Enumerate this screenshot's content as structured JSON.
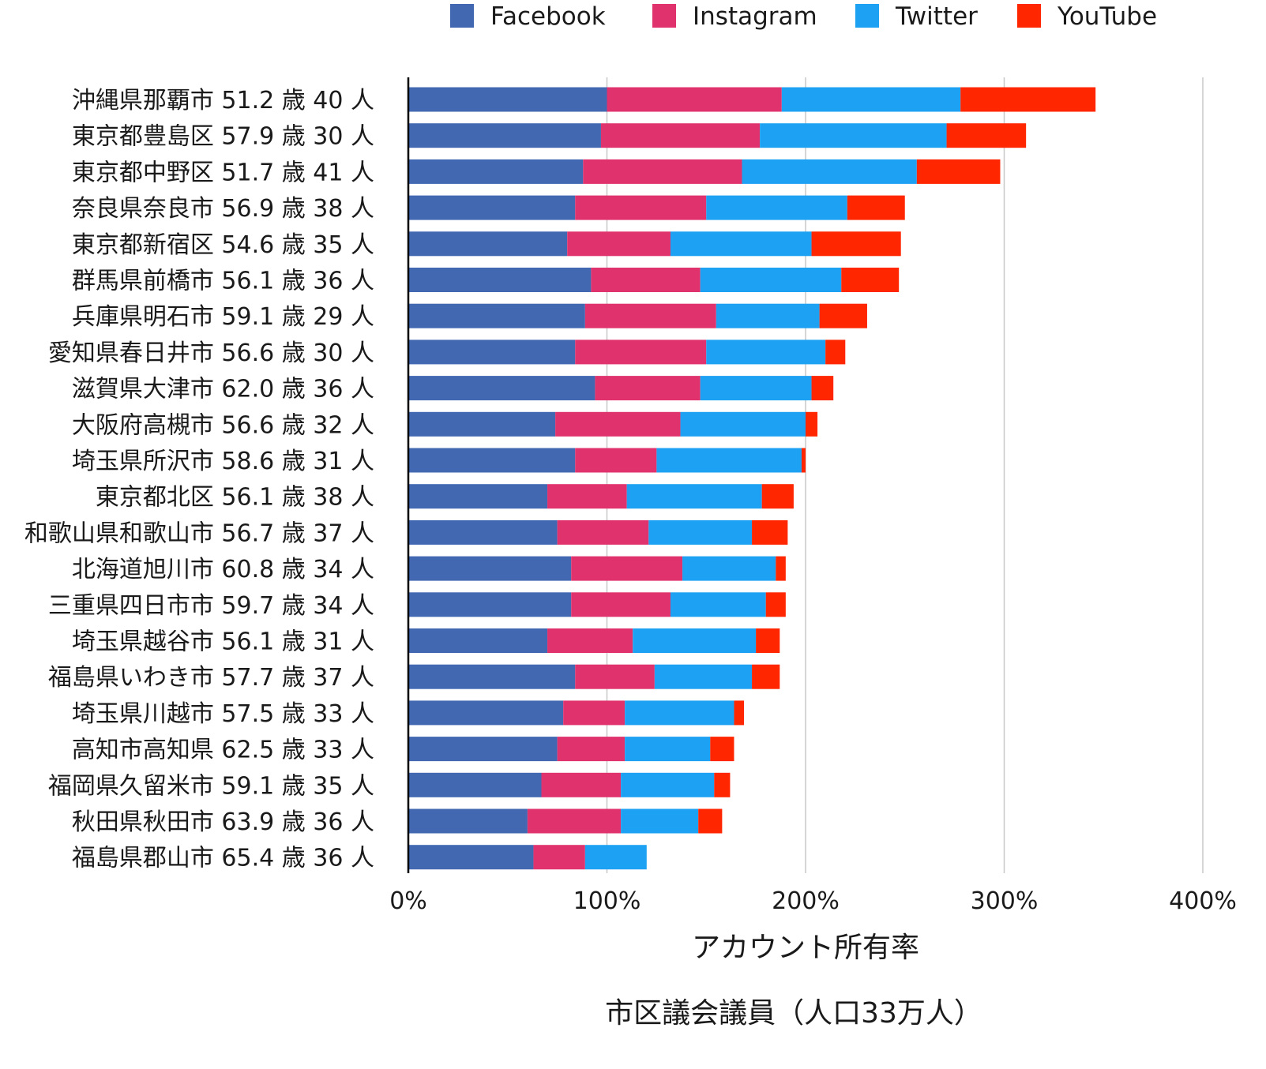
{
  "chart_data": {
    "type": "bar",
    "orientation": "horizontal",
    "stacked": true,
    "xlabel": "アカウント所有率",
    "title": "市区議会議員（人口33万人）",
    "xlim": [
      0,
      400
    ],
    "x_ticks": [
      "0%",
      "100%",
      "200%",
      "300%",
      "400%"
    ],
    "grid": true,
    "legend_position": "top",
    "categories": [
      "沖縄県那覇市 51.2 歳 40 人",
      "東京都豊島区 57.9 歳 30 人",
      "東京都中野区 51.7 歳 41 人",
      "奈良県奈良市 56.9 歳 38 人",
      "東京都新宿区 54.6 歳 35 人",
      "群馬県前橋市 56.1 歳 36 人",
      "兵庫県明石市 59.1 歳 29 人",
      "愛知県春日井市 56.6 歳 30 人",
      "滋賀県大津市 62.0 歳 36 人",
      "大阪府高槻市 56.6 歳 32 人",
      "埼玉県所沢市 58.6 歳 31 人",
      "東京都北区 56.1 歳 38 人",
      "和歌山県和歌山市 56.7 歳 37 人",
      "北海道旭川市 60.8 歳 34 人",
      "三重県四日市市 59.7 歳 34 人",
      "埼玉県越谷市 56.1 歳 31 人",
      "福島県いわき市 57.7 歳 37 人",
      "埼玉県川越市 57.5 歳 33 人",
      "高知市高知県 62.5 歳 33 人",
      "福岡県久留米市 59.1 歳 35 人",
      "秋田県秋田市 63.9 歳 36 人",
      "福島県郡山市 65.4 歳 36 人"
    ],
    "series": [
      {
        "name": "Facebook",
        "color": "#4268b2",
        "values": [
          100,
          97,
          88,
          84,
          80,
          92,
          89,
          84,
          94,
          74,
          84,
          70,
          75,
          82,
          82,
          70,
          84,
          78,
          75,
          67,
          60,
          63
        ]
      },
      {
        "name": "Instagram",
        "color": "#e0336d",
        "values": [
          88,
          80,
          80,
          66,
          52,
          55,
          66,
          66,
          53,
          63,
          41,
          40,
          46,
          56,
          50,
          43,
          40,
          31,
          34,
          40,
          47,
          26
        ]
      },
      {
        "name": "Twitter",
        "color": "#1da1f2",
        "values": [
          90,
          94,
          88,
          71,
          71,
          71,
          52,
          60,
          56,
          63,
          73,
          68,
          52,
          47,
          48,
          62,
          49,
          55,
          43,
          47,
          39,
          31
        ]
      },
      {
        "name": "YouTube",
        "color": "#ff2600",
        "values": [
          68,
          40,
          42,
          29,
          45,
          29,
          24,
          10,
          11,
          6,
          2,
          16,
          18,
          5,
          10,
          12,
          14,
          5,
          12,
          8,
          12,
          0
        ]
      }
    ]
  }
}
